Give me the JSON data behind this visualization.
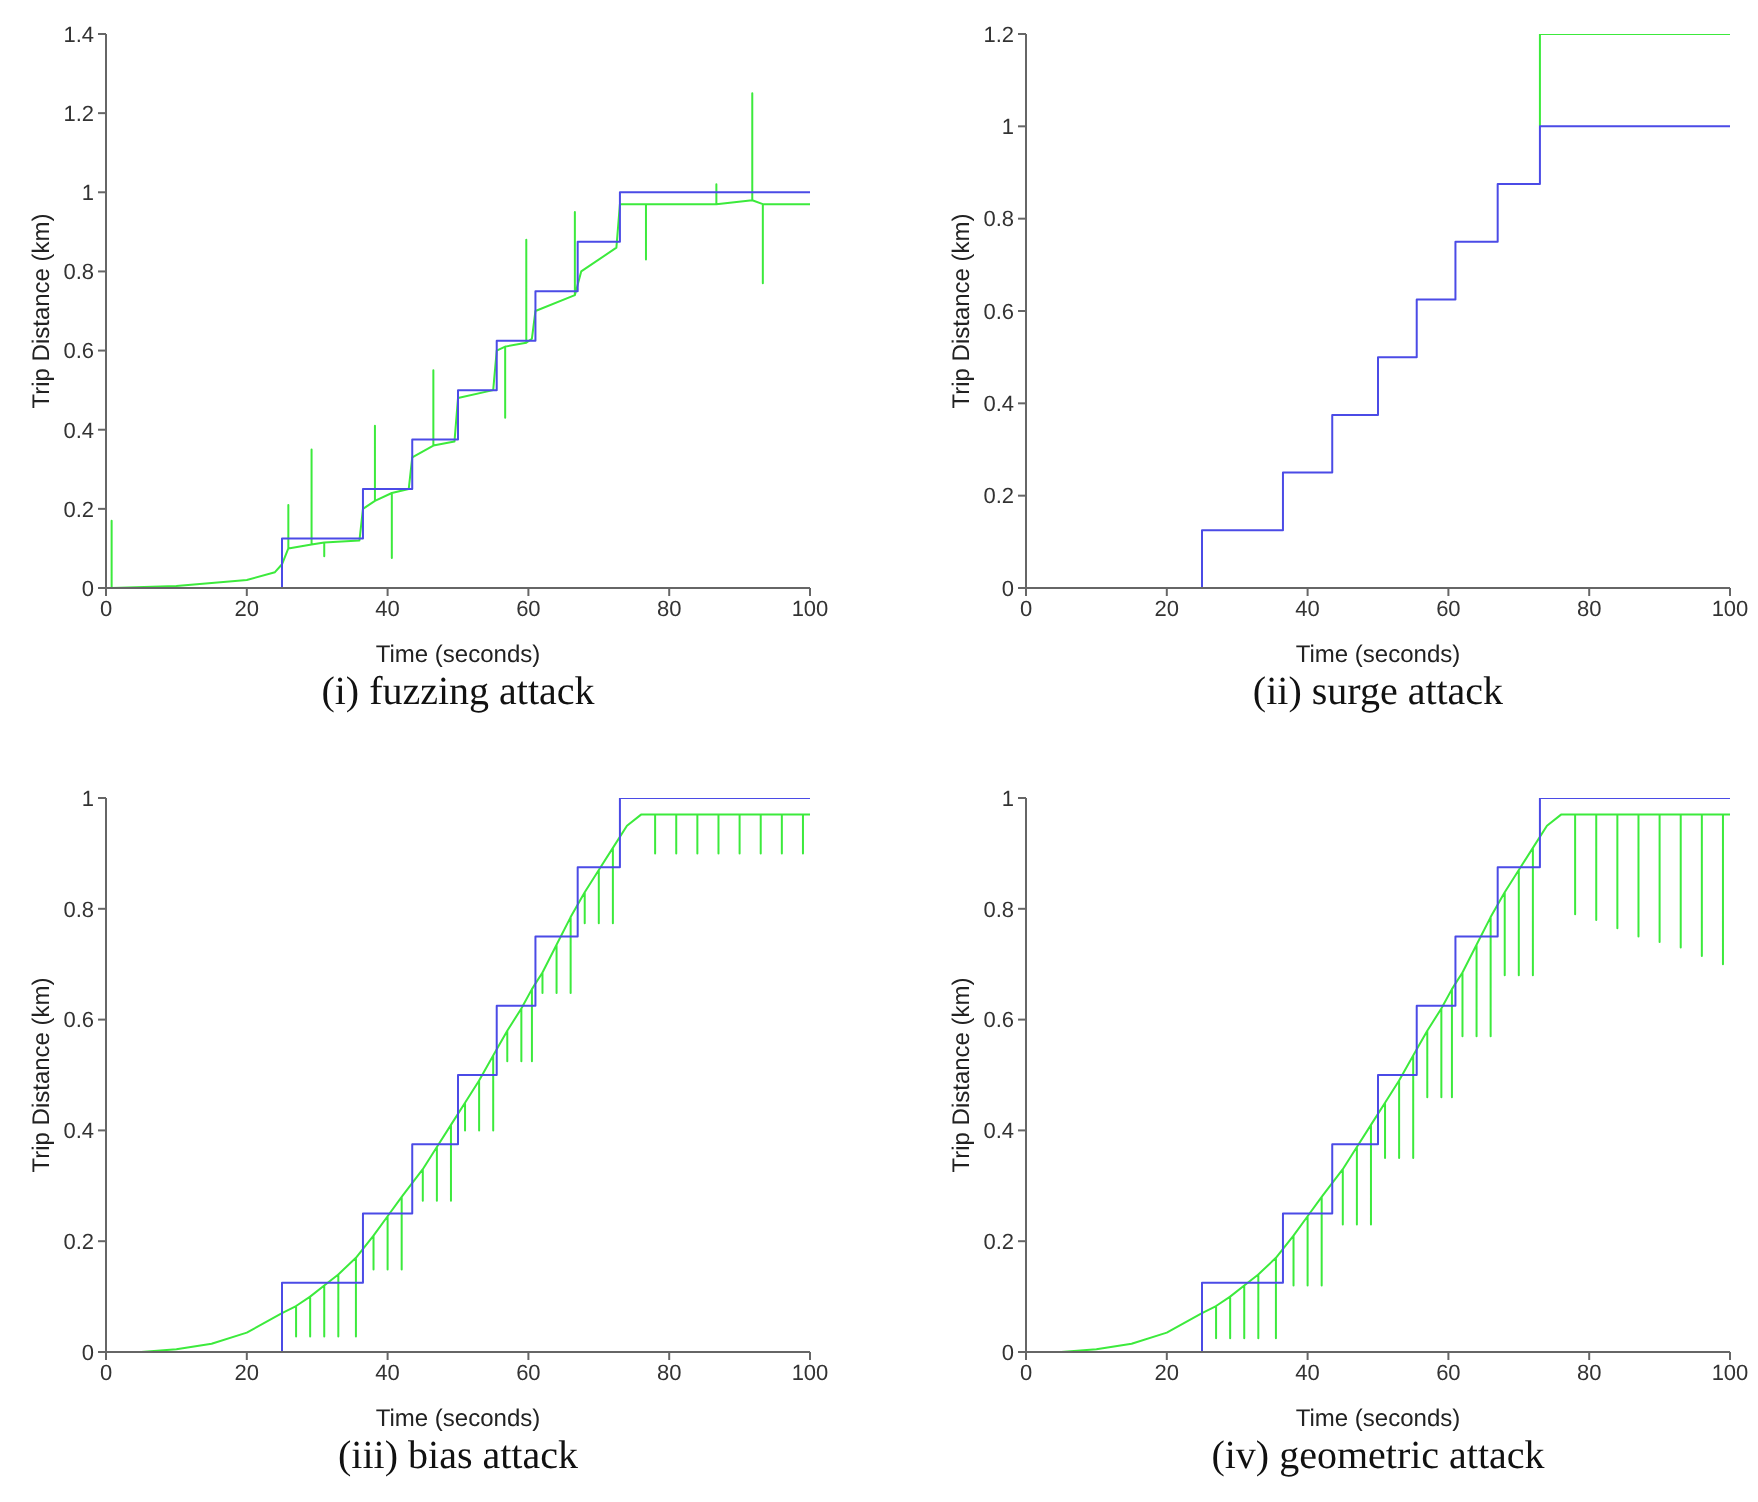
{
  "chart_data": [
    {
      "type": "line",
      "title": "(i) fuzzing attack",
      "xlabel": "Time (seconds)",
      "ylabel": "Trip Distance (km)",
      "xlim": [
        0,
        100
      ],
      "xticks": [
        0,
        20,
        40,
        60,
        80,
        100
      ],
      "ylim": [
        0,
        1.4
      ],
      "yticks": [
        0,
        0.2,
        0.4,
        0.6,
        0.8,
        1,
        1.2,
        1.4
      ],
      "series": [
        {
          "type": "line",
          "color": "#3cea3c",
          "x": [
            0,
            0.8,
            0.8,
            0.8,
            10,
            20,
            24,
            25,
            25.9,
            25.9,
            25.9,
            29.2,
            29.2,
            29.2,
            31,
            31,
            31,
            36,
            36.5,
            38.2,
            38.2,
            38.2,
            40.6,
            40.6,
            40.6,
            43,
            43.5,
            46.5,
            46.5,
            46.5,
            49.5,
            50,
            55,
            55.5,
            56.7,
            56.7,
            56.7,
            59.7,
            59.7,
            59.7,
            60.5,
            61,
            66.6,
            66.6,
            66.6,
            67.5,
            72.5,
            73,
            76.7,
            76.7,
            76.7,
            86.7,
            86.7,
            86.7,
            91.8,
            91.8,
            91.8,
            93.3,
            93.3,
            93.3,
            100
          ],
          "values": [
            0,
            0,
            0.17,
            0,
            0.005,
            0.02,
            0.04,
            0.06,
            0.1,
            0.21,
            0.1,
            0.11,
            0.35,
            0.11,
            0.115,
            0.08,
            0.115,
            0.12,
            0.2,
            0.22,
            0.41,
            0.22,
            0.24,
            0.076,
            0.24,
            0.25,
            0.33,
            0.36,
            0.55,
            0.36,
            0.37,
            0.48,
            0.5,
            0.6,
            0.61,
            0.43,
            0.61,
            0.62,
            0.88,
            0.62,
            0.63,
            0.7,
            0.74,
            0.95,
            0.74,
            0.8,
            0.86,
            0.97,
            0.97,
            0.83,
            0.97,
            0.97,
            1.02,
            0.97,
            0.98,
            1.25,
            0.98,
            0.97,
            0.77,
            0.97,
            0.97
          ]
        },
        {
          "type": "step",
          "color": "#4b4be6",
          "x": [
            0,
            25,
            36.5,
            43.5,
            50,
            55.5,
            61,
            67,
            73,
            100
          ],
          "values": [
            0,
            0.125,
            0.25,
            0.375,
            0.5,
            0.625,
            0.75,
            0.875,
            1,
            1
          ]
        }
      ]
    },
    {
      "type": "line",
      "title": "(ii) surge attack",
      "xlabel": "Time (seconds)",
      "ylabel": "Trip Distance (km)",
      "xlim": [
        0,
        100
      ],
      "xticks": [
        0,
        20,
        40,
        60,
        80,
        100
      ],
      "ylim": [
        0,
        1.2
      ],
      "yticks": [
        0,
        0.2,
        0.4,
        0.6,
        0.8,
        1,
        1.2
      ],
      "series": [
        {
          "type": "line",
          "color": "#3cea3c",
          "x": [
            73,
            73,
            100
          ],
          "values": [
            1,
            1.2,
            1.2
          ]
        },
        {
          "type": "step",
          "color": "#4b4be6",
          "x": [
            0,
            25,
            36.5,
            43.5,
            50,
            55.5,
            61,
            67,
            73,
            100
          ],
          "values": [
            0,
            0.125,
            0.25,
            0.375,
            0.5,
            0.625,
            0.75,
            0.875,
            1,
            1
          ]
        }
      ]
    },
    {
      "type": "line",
      "title": "(iii) bias attack",
      "xlabel": "Time (seconds)",
      "ylabel": "Trip Distance (km)",
      "xlim": [
        0,
        100
      ],
      "xticks": [
        0,
        20,
        40,
        60,
        80,
        100
      ],
      "ylim": [
        0,
        1
      ],
      "yticks": [
        0,
        0.2,
        0.4,
        0.6,
        0.8,
        1
      ],
      "series": [
        {
          "type": "line",
          "color": "#3cea3c",
          "x": [
            0,
            5,
            10,
            15,
            20,
            25,
            27,
            27,
            27,
            29,
            29,
            29,
            31,
            31,
            31,
            33,
            33,
            33,
            35.5,
            35.5,
            35.5,
            38,
            38,
            38,
            40,
            40,
            40,
            42,
            42,
            42,
            45,
            45,
            45,
            47,
            47,
            47,
            49,
            49,
            49,
            51,
            51,
            51,
            53,
            53,
            53,
            55,
            55,
            55,
            57,
            57,
            57,
            59,
            59,
            59,
            60.5,
            60.5,
            60.5,
            62,
            62,
            62,
            64,
            64,
            64,
            66,
            66,
            66,
            68,
            68,
            68,
            70,
            70,
            70,
            72,
            72,
            72,
            74,
            76,
            78,
            78,
            78,
            81,
            81,
            81,
            84,
            84,
            84,
            87,
            87,
            87,
            90,
            90,
            90,
            93,
            93,
            93,
            96,
            96,
            96,
            99,
            99,
            99,
            100
          ],
          "values": [
            0,
            0,
            0.005,
            0.015,
            0.035,
            0.07,
            0.083,
            0.028,
            0.083,
            0.1,
            0.028,
            0.1,
            0.12,
            0.028,
            0.12,
            0.14,
            0.028,
            0.14,
            0.17,
            0.028,
            0.17,
            0.21,
            0.149,
            0.21,
            0.245,
            0.149,
            0.245,
            0.28,
            0.149,
            0.28,
            0.33,
            0.273,
            0.33,
            0.37,
            0.273,
            0.37,
            0.41,
            0.273,
            0.41,
            0.45,
            0.4,
            0.45,
            0.49,
            0.4,
            0.49,
            0.535,
            0.4,
            0.535,
            0.58,
            0.525,
            0.58,
            0.62,
            0.525,
            0.62,
            0.655,
            0.525,
            0.655,
            0.685,
            0.648,
            0.685,
            0.735,
            0.648,
            0.735,
            0.785,
            0.648,
            0.785,
            0.83,
            0.774,
            0.83,
            0.87,
            0.774,
            0.87,
            0.91,
            0.774,
            0.91,
            0.95,
            0.97,
            0.97,
            0.9,
            0.97,
            0.97,
            0.9,
            0.97,
            0.97,
            0.9,
            0.97,
            0.97,
            0.9,
            0.97,
            0.97,
            0.9,
            0.97,
            0.97,
            0.9,
            0.97,
            0.97,
            0.9,
            0.97,
            0.97,
            0.9,
            0.97,
            0.97
          ]
        },
        {
          "type": "step",
          "color": "#4b4be6",
          "x": [
            0,
            25,
            36.5,
            43.5,
            50,
            55.5,
            61,
            67,
            73,
            100
          ],
          "values": [
            0,
            0.125,
            0.25,
            0.375,
            0.5,
            0.625,
            0.75,
            0.875,
            1,
            1
          ]
        }
      ]
    },
    {
      "type": "line",
      "title": "(iv) geometric attack",
      "xlabel": "Time (seconds)",
      "ylabel": "Trip Distance (km)",
      "xlim": [
        0,
        100
      ],
      "xticks": [
        0,
        20,
        40,
        60,
        80,
        100
      ],
      "ylim": [
        0,
        1
      ],
      "yticks": [
        0,
        0.2,
        0.4,
        0.6,
        0.8,
        1
      ],
      "series": [
        {
          "type": "line",
          "color": "#3cea3c",
          "x": [
            0,
            5,
            10,
            15,
            20,
            25,
            27,
            27,
            27,
            29,
            29,
            29,
            31,
            31,
            31,
            33,
            33,
            33,
            35.5,
            35.5,
            35.5,
            38,
            38,
            38,
            40,
            40,
            40,
            42,
            42,
            42,
            45,
            45,
            45,
            47,
            47,
            47,
            49,
            49,
            49,
            51,
            51,
            51,
            53,
            53,
            53,
            55,
            55,
            55,
            57,
            57,
            57,
            59,
            59,
            59,
            60.5,
            60.5,
            60.5,
            62,
            62,
            62,
            64,
            64,
            64,
            66,
            66,
            66,
            68,
            68,
            68,
            70,
            70,
            70,
            72,
            72,
            72,
            74,
            76,
            78,
            78,
            78,
            81,
            81,
            81,
            84,
            84,
            84,
            87,
            87,
            87,
            90,
            90,
            90,
            93,
            93,
            93,
            96,
            96,
            96,
            99,
            99,
            99,
            100
          ],
          "values": [
            0,
            0,
            0.005,
            0.015,
            0.035,
            0.07,
            0.083,
            0.025,
            0.083,
            0.1,
            0.025,
            0.1,
            0.12,
            0.025,
            0.12,
            0.14,
            0.025,
            0.14,
            0.17,
            0.025,
            0.17,
            0.21,
            0.12,
            0.21,
            0.245,
            0.12,
            0.245,
            0.28,
            0.12,
            0.28,
            0.33,
            0.23,
            0.33,
            0.37,
            0.23,
            0.37,
            0.41,
            0.23,
            0.41,
            0.45,
            0.35,
            0.45,
            0.49,
            0.35,
            0.49,
            0.535,
            0.35,
            0.535,
            0.58,
            0.46,
            0.58,
            0.62,
            0.46,
            0.62,
            0.655,
            0.46,
            0.655,
            0.685,
            0.57,
            0.685,
            0.735,
            0.57,
            0.735,
            0.785,
            0.57,
            0.785,
            0.83,
            0.68,
            0.83,
            0.87,
            0.68,
            0.87,
            0.91,
            0.68,
            0.91,
            0.95,
            0.97,
            0.97,
            0.79,
            0.97,
            0.97,
            0.78,
            0.97,
            0.97,
            0.765,
            0.97,
            0.97,
            0.75,
            0.97,
            0.97,
            0.74,
            0.97,
            0.97,
            0.73,
            0.97,
            0.97,
            0.715,
            0.97,
            0.97,
            0.7,
            0.97,
            0.97
          ]
        },
        {
          "type": "step",
          "color": "#4b4be6",
          "x": [
            0,
            25,
            36.5,
            43.5,
            50,
            55.5,
            61,
            67,
            73,
            100
          ],
          "values": [
            0,
            0.125,
            0.25,
            0.375,
            0.5,
            0.625,
            0.75,
            0.875,
            1,
            1
          ]
        }
      ]
    }
  ]
}
